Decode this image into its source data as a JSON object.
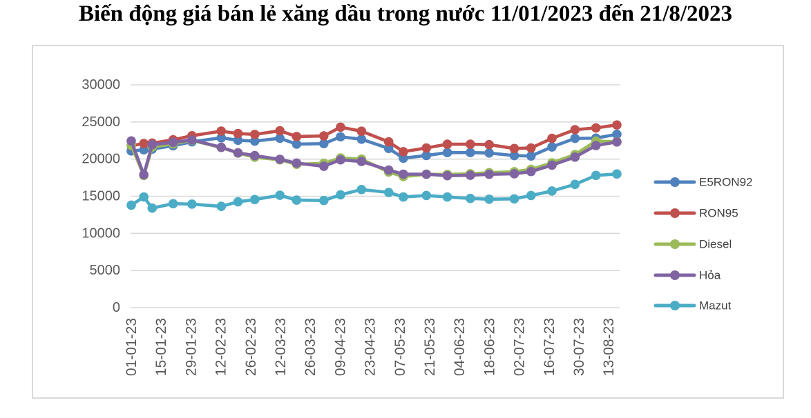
{
  "title": "Biến động giá bán lẻ xăng dầu trong nước 11/01/2023 đến 21/8/2023",
  "colors": {
    "gridline": "#D9D9D9",
    "frame_border": "#D9D9D9",
    "axis_text": "#595959",
    "legend_text": "#404040",
    "background": "#FFFFFF"
  },
  "chart_data": {
    "type": "line",
    "title": "Biến động giá bán lẻ xăng dầu trong nước 11/01/2023 đến 21/8/2023",
    "xlabel": "",
    "ylabel": "",
    "ylim": [
      0,
      30000
    ],
    "y_ticks": [
      0,
      5000,
      10000,
      15000,
      20000,
      25000,
      30000
    ],
    "grid": "horizontal",
    "legend_position": "right",
    "marker": "circle",
    "x_tick_labels": [
      "01-01-23",
      "15-01-23",
      "29-01-23",
      "12-02-23",
      "26-02-23",
      "12-03-23",
      "26-03-23",
      "09-04-23",
      "23-04-23",
      "07-05-23",
      "21-05-23",
      "04-06-23",
      "18-06-23",
      "02-07-23",
      "16-07-23",
      "30-07-23",
      "13-08-23"
    ],
    "x_tick_interval_days": 14,
    "point_dates": [
      "01-01",
      "07-01",
      "11-01",
      "21-01",
      "30-01",
      "13-02",
      "21-02",
      "01-03",
      "13-03",
      "21-03",
      "03-04",
      "11-04",
      "21-04",
      "04-05",
      "11-05",
      "22-05",
      "01-06",
      "12-06",
      "21-06",
      "03-07",
      "11-07",
      "21-07",
      "01-08",
      "11-08",
      "21-08"
    ],
    "point_day_offsets": [
      0,
      6,
      10,
      20,
      29,
      43,
      51,
      59,
      71,
      79,
      92,
      100,
      110,
      123,
      130,
      141,
      151,
      162,
      171,
      183,
      191,
      201,
      212,
      222,
      232
    ],
    "series": [
      {
        "name": "E5RON92",
        "color": "#4F81BD",
        "values": [
          21100,
          21250,
          21350,
          21800,
          22329,
          22869,
          22542,
          22421,
          22806,
          22022,
          22082,
          23000,
          22681,
          21437,
          20131,
          20488,
          20878,
          20878,
          20823,
          20470,
          20419,
          21639,
          22791,
          22822,
          23339
        ]
      },
      {
        "name": "RON95",
        "color": "#C0504D",
        "values": [
          21800,
          22100,
          22155,
          22600,
          23147,
          23767,
          23443,
          23325,
          23818,
          23038,
          23125,
          24300,
          23756,
          22320,
          21000,
          21499,
          22010,
          22010,
          21950,
          21428,
          21498,
          22792,
          23963,
          24200,
          24601
        ]
      },
      {
        "name": "Diesel",
        "color": "#9BBB59",
        "values": [
          21850,
          17800,
          21634,
          22050,
          22524,
          21562,
          20806,
          20255,
          19908,
          19302,
          19430,
          20149,
          19996,
          18254,
          17653,
          17954,
          17943,
          18028,
          18174,
          18300,
          18616,
          19500,
          20612,
          22422,
          22354
        ]
      },
      {
        "name": "Hỏa",
        "color": "#8064A2",
        "values": [
          22450,
          17900,
          21950,
          22250,
          22576,
          21594,
          20846,
          20474,
          19970,
          19462,
          19037,
          19900,
          19680,
          18528,
          17972,
          17969,
          17771,
          17823,
          17956,
          18020,
          18320,
          19189,
          20270,
          21825,
          22309
        ]
      },
      {
        "name": "Mazut",
        "color": "#4BACC6",
        "values": [
          13800,
          14900,
          13400,
          14000,
          13934,
          13636,
          14251,
          14555,
          15129,
          14479,
          14429,
          15194,
          15900,
          15510,
          14900,
          15100,
          14900,
          14700,
          14600,
          14650,
          15100,
          15700,
          16600,
          17800,
          18000
        ]
      }
    ]
  }
}
